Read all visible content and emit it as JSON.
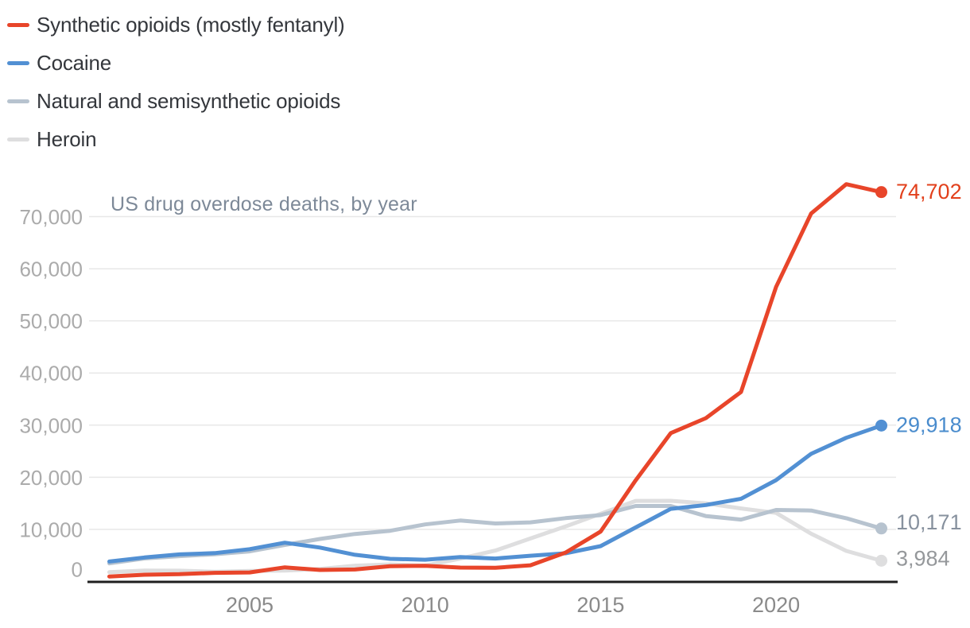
{
  "chart_data": {
    "type": "line",
    "title": "US drug overdose deaths, by year",
    "xlabel": "",
    "ylabel": "",
    "x": [
      2001,
      2002,
      2003,
      2004,
      2005,
      2006,
      2007,
      2008,
      2009,
      2010,
      2011,
      2012,
      2013,
      2014,
      2015,
      2016,
      2017,
      2018,
      2019,
      2020,
      2021,
      2022,
      2023
    ],
    "series": [
      {
        "name": "Synthetic opioids (mostly fentanyl)",
        "color": "#e8452a",
        "label_color": "#e2401c",
        "end_label": "74,702",
        "values": [
          957,
          1295,
          1400,
          1664,
          1742,
          2707,
          2213,
          2306,
          2946,
          3007,
          2666,
          2628,
          3105,
          5544,
          9580,
          19413,
          28466,
          31335,
          36359,
          56516,
          70601,
          76226,
          74702
        ]
      },
      {
        "name": "Cocaine",
        "color": "#5290d3",
        "label_color": "#4a8ccd",
        "end_label": "29,918",
        "values": [
          3833,
          4599,
          5199,
          5443,
          6208,
          7448,
          6512,
          5129,
          4350,
          4183,
          4681,
          4404,
          4944,
          5415,
          6784,
          10375,
          13942,
          14666,
          15883,
          19447,
          24486,
          27569,
          29918
        ]
      },
      {
        "name": "Natural and semisynthetic opioids",
        "color": "#b7c3cf",
        "label_color": "#87919e",
        "end_label": "10,171",
        "values": [
          3476,
          4416,
          4867,
          5231,
          5773,
          7017,
          8158,
          9119,
          9735,
          10943,
          11693,
          11140,
          11346,
          12159,
          12727,
          14487,
          14495,
          12552,
          11886,
          13722,
          13618,
          12135,
          10171
        ]
      },
      {
        "name": "Heroin",
        "color": "#dededf",
        "label_color": "#95989b",
        "end_label": "3,984",
        "values": [
          1779,
          2089,
          2080,
          1878,
          2009,
          2088,
          2399,
          3041,
          3278,
          3036,
          4397,
          5925,
          8257,
          10574,
          12989,
          15469,
          15482,
          14996,
          14019,
          13165,
          9173,
          5871,
          3984
        ]
      }
    ],
    "x_ticks": [
      {
        "value": 2005,
        "label": "2005"
      },
      {
        "value": 2010,
        "label": "2010"
      },
      {
        "value": 2015,
        "label": "2015"
      },
      {
        "value": 2020,
        "label": "2020"
      }
    ],
    "y_ticks": [
      {
        "value": 0,
        "label": "0"
      },
      {
        "value": 10000,
        "label": "10,000"
      },
      {
        "value": 20000,
        "label": "20,000"
      },
      {
        "value": 30000,
        "label": "30,000"
      },
      {
        "value": 40000,
        "label": "40,000"
      },
      {
        "value": 50000,
        "label": "50,000"
      },
      {
        "value": 60000,
        "label": "60,000"
      },
      {
        "value": 70000,
        "label": "70,000"
      }
    ],
    "xlim": [
      2001,
      2023
    ],
    "ylim": [
      0,
      78000
    ],
    "grid": "horizontal",
    "legend_position": "top-left",
    "colors": {
      "axis": "#1f1f1f",
      "gridline": "#e8e8e8",
      "title_text": "#7d8998",
      "y_tick_text": "#ababab",
      "x_tick_text": "#8a8a8a",
      "legend_text": "#34373c"
    }
  }
}
